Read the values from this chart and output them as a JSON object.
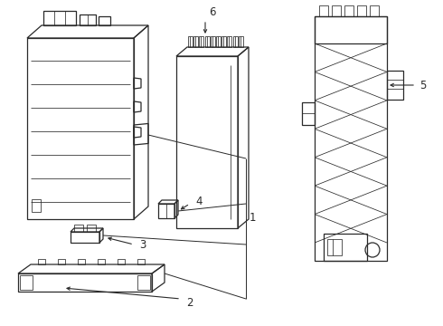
{
  "bg_color": "#ffffff",
  "lc": "#2a2a2a",
  "lw": 0.9,
  "tlw": 0.55,
  "fs": 8.5,
  "figsize": [
    4.9,
    3.6
  ],
  "dpi": 100
}
